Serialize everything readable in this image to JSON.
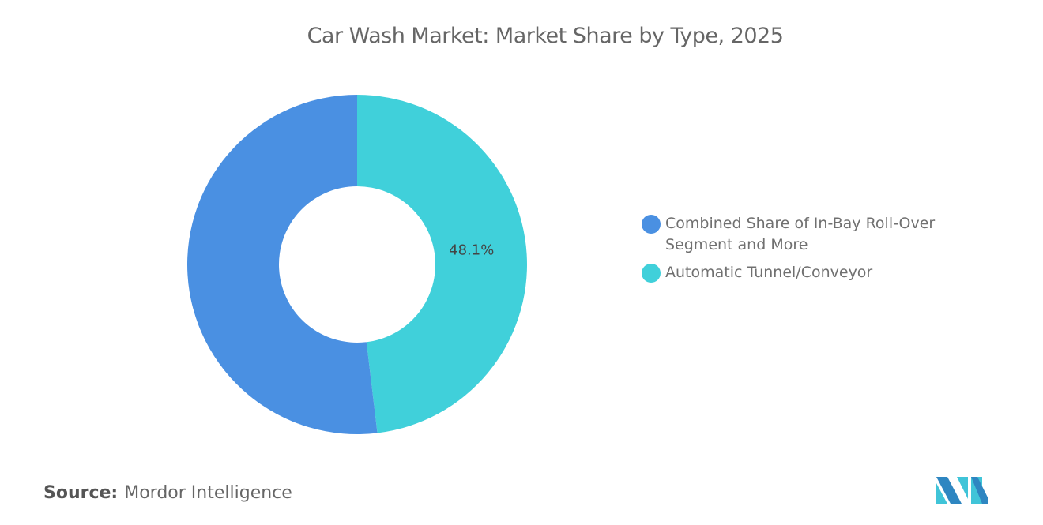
{
  "chart_data": {
    "type": "pie",
    "variant": "donut",
    "title": "Car Wash Market: Market Share by Type, 2025",
    "categories": [
      "Combined Share of In-Bay Roll-Over Segment and More",
      "Automatic Tunnel/Conveyor"
    ],
    "values": [
      51.9,
      48.1
    ],
    "colors": [
      "#4a90e2",
      "#40d0da"
    ],
    "data_labels": [
      "",
      "48.1%"
    ],
    "legend_position": "right"
  },
  "source": {
    "label": "Source:",
    "value": "Mordor Intelligence"
  },
  "logo": "Mordor Intelligence logo"
}
